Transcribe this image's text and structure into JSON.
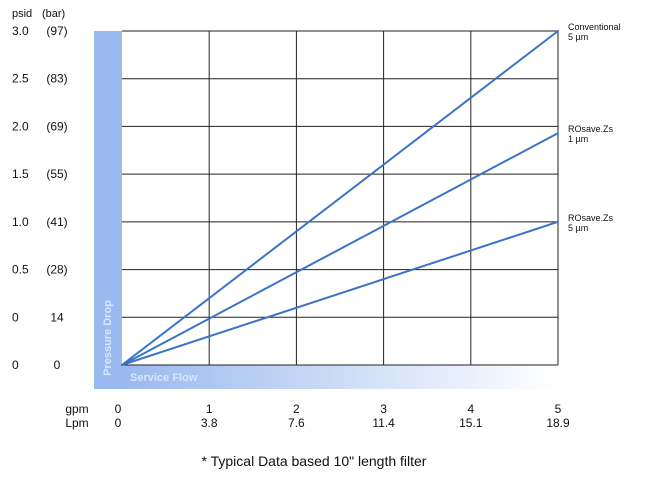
{
  "chart_data": {
    "type": "line",
    "y_headers": [
      "psid",
      "(bar)"
    ],
    "x_headers": [
      "gpm",
      "Lpm"
    ],
    "y_ticks": [
      {
        "psid": "3.0",
        "bar": "(97)",
        "value": 3.0
      },
      {
        "psid": "2.5",
        "bar": "(83)",
        "value": 2.5
      },
      {
        "psid": "2.0",
        "bar": "(69)",
        "value": 2.0
      },
      {
        "psid": "1.5",
        "bar": "(55)",
        "value": 1.5
      },
      {
        "psid": "1.0",
        "bar": "(41)",
        "value": 1.0
      },
      {
        "psid": "0.5",
        "bar": "(28)",
        "value": 0.5
      },
      {
        "psid": "0",
        "bar": "14",
        "value": 0.0
      },
      {
        "psid": "0",
        "bar": "0",
        "value": -0.5
      }
    ],
    "x_ticks": [
      {
        "gpm": "0",
        "lpm": "0",
        "value": 0
      },
      {
        "gpm": "1",
        "lpm": "3.8",
        "value": 1
      },
      {
        "gpm": "2",
        "lpm": "7.6",
        "value": 2
      },
      {
        "gpm": "3",
        "lpm": "11.4",
        "value": 3
      },
      {
        "gpm": "4",
        "lpm": "15.1",
        "value": 4
      },
      {
        "gpm": "5",
        "lpm": "18.9",
        "value": 5
      }
    ],
    "xlim": [
      0,
      5
    ],
    "ylim": [
      -0.5,
      3.0
    ],
    "grid": true,
    "series": [
      {
        "name": [
          "Conventional",
          "5 µm"
        ],
        "x": [
          0,
          5
        ],
        "y": [
          -0.5,
          3.0
        ]
      },
      {
        "name": [
          "ROsave.Zs",
          "1 µm"
        ],
        "x": [
          0,
          5
        ],
        "y": [
          -0.5,
          1.93
        ]
      },
      {
        "name": [
          "ROsave.Zs",
          "5 µm"
        ],
        "x": [
          0,
          5
        ],
        "y": [
          -0.5,
          1.0
        ]
      }
    ],
    "y_axis_band_label": "Pressure Drop",
    "x_axis_band_label": "Service Flow",
    "footnote": "* Typical Data based 10\" length filter",
    "colors": {
      "series": "#3a74c8",
      "band": "#9ab9ee",
      "grid": "#222222"
    }
  }
}
